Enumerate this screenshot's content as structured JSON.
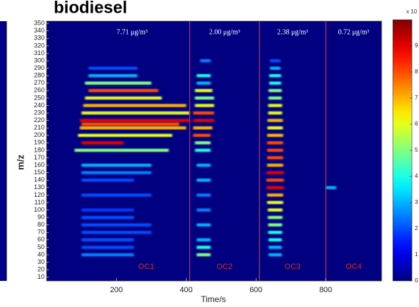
{
  "chart_data": {
    "type": "heatmap",
    "title": "biodiesel",
    "xlabel": "Time/s",
    "ylabel": "m/z",
    "xlim": [
      0,
      960
    ],
    "xticks": [
      200,
      400,
      600,
      800
    ],
    "ylim": [
      5,
      353
    ],
    "yticks": [
      10,
      20,
      30,
      40,
      50,
      60,
      70,
      80,
      90,
      100,
      110,
      120,
      130,
      140,
      150,
      160,
      170,
      180,
      190,
      200,
      210,
      220,
      230,
      240,
      250,
      260,
      270,
      280,
      290,
      300,
      310,
      320,
      330,
      340,
      350
    ],
    "clim": [
      0,
      10
    ],
    "cticks": [
      0,
      1,
      2,
      3,
      4,
      5,
      6,
      7,
      8,
      9
    ],
    "colorbar_label": "x 10",
    "colormap": "jet",
    "divider_color": "#d42a2a",
    "dividers": [
      410,
      610,
      800
    ],
    "annotations": [
      "7.71 μg/m³",
      "2.00 μg/m³",
      "2.38 μg/m³",
      "0.72 μg/m³"
    ],
    "regions": [
      "OC1",
      "OC2",
      "OC3",
      "OC4"
    ],
    "streaks": [
      {
        "time": [
          120,
          260
        ],
        "mz": 290,
        "value": 2
      },
      {
        "time": [
          120,
          260
        ],
        "mz": 280,
        "value": 3
      },
      {
        "time": [
          110,
          300
        ],
        "mz": 270,
        "value": 5
      },
      {
        "time": [
          120,
          320
        ],
        "mz": 260,
        "value": 8
      },
      {
        "time": [
          110,
          330
        ],
        "mz": 250,
        "value": 6
      },
      {
        "time": [
          105,
          400
        ],
        "mz": 240,
        "value": 7
      },
      {
        "time": [
          100,
          410
        ],
        "mz": 230,
        "value": 6
      },
      {
        "time": [
          95,
          410
        ],
        "mz": 220,
        "value": 9
      },
      {
        "time": [
          100,
          380
        ],
        "mz": 215,
        "value": 8
      },
      {
        "time": [
          95,
          400
        ],
        "mz": 210,
        "value": 7
      },
      {
        "time": [
          90,
          360
        ],
        "mz": 200,
        "value": 6
      },
      {
        "time": [
          100,
          220
        ],
        "mz": 190,
        "value": 9
      },
      {
        "time": [
          80,
          350
        ],
        "mz": 180,
        "value": 5
      },
      {
        "time": [
          100,
          300
        ],
        "mz": 160,
        "value": 3
      },
      {
        "time": [
          100,
          300
        ],
        "mz": 150,
        "value": 2.5
      },
      {
        "time": [
          100,
          250
        ],
        "mz": 140,
        "value": 2
      },
      {
        "time": [
          100,
          300
        ],
        "mz": 120,
        "value": 2
      },
      {
        "time": [
          100,
          250
        ],
        "mz": 100,
        "value": 1.8
      },
      {
        "time": [
          100,
          250
        ],
        "mz": 90,
        "value": 2
      },
      {
        "time": [
          100,
          300
        ],
        "mz": 80,
        "value": 2
      },
      {
        "time": [
          100,
          300
        ],
        "mz": 70,
        "value": 2
      },
      {
        "time": [
          100,
          250
        ],
        "mz": 60,
        "value": 2
      },
      {
        "time": [
          100,
          250
        ],
        "mz": 50,
        "value": 2
      },
      {
        "time": [
          100,
          250
        ],
        "mz": 40,
        "value": 2.5
      },
      {
        "time": [
          440,
          470
        ],
        "mz": 300,
        "value": 2.5
      },
      {
        "time": [
          430,
          470
        ],
        "mz": 280,
        "value": 4
      },
      {
        "time": [
          430,
          470
        ],
        "mz": 270,
        "value": 3
      },
      {
        "time": [
          425,
          475
        ],
        "mz": 260,
        "value": 6
      },
      {
        "time": [
          425,
          480
        ],
        "mz": 250,
        "value": 5
      },
      {
        "time": [
          425,
          480
        ],
        "mz": 240,
        "value": 6
      },
      {
        "time": [
          420,
          480
        ],
        "mz": 230,
        "value": 8
      },
      {
        "time": [
          420,
          480
        ],
        "mz": 220,
        "value": 9
      },
      {
        "time": [
          420,
          475
        ],
        "mz": 210,
        "value": 7
      },
      {
        "time": [
          420,
          470
        ],
        "mz": 200,
        "value": 8
      },
      {
        "time": [
          425,
          470
        ],
        "mz": 190,
        "value": 5
      },
      {
        "time": [
          425,
          470
        ],
        "mz": 180,
        "value": 4
      },
      {
        "time": [
          430,
          470
        ],
        "mz": 160,
        "value": 3
      },
      {
        "time": [
          430,
          470
        ],
        "mz": 140,
        "value": 3
      },
      {
        "time": [
          430,
          470
        ],
        "mz": 120,
        "value": 2.5
      },
      {
        "time": [
          430,
          470
        ],
        "mz": 100,
        "value": 2.5
      },
      {
        "time": [
          430,
          470
        ],
        "mz": 80,
        "value": 3
      },
      {
        "time": [
          430,
          470
        ],
        "mz": 60,
        "value": 3
      },
      {
        "time": [
          430,
          470
        ],
        "mz": 50,
        "value": 4
      },
      {
        "time": [
          430,
          470
        ],
        "mz": 40,
        "value": 5
      },
      {
        "time": [
          640,
          670
        ],
        "mz": 300,
        "value": 2
      },
      {
        "time": [
          640,
          670
        ],
        "mz": 290,
        "value": 3
      },
      {
        "time": [
          638,
          672
        ],
        "mz": 280,
        "value": 4
      },
      {
        "time": [
          638,
          672
        ],
        "mz": 270,
        "value": 4
      },
      {
        "time": [
          636,
          674
        ],
        "mz": 260,
        "value": 5
      },
      {
        "time": [
          636,
          674
        ],
        "mz": 250,
        "value": 5
      },
      {
        "time": [
          635,
          675
        ],
        "mz": 240,
        "value": 6
      },
      {
        "time": [
          635,
          675
        ],
        "mz": 230,
        "value": 6
      },
      {
        "time": [
          633,
          677
        ],
        "mz": 220,
        "value": 7
      },
      {
        "time": [
          633,
          677
        ],
        "mz": 210,
        "value": 6
      },
      {
        "time": [
          632,
          678
        ],
        "mz": 200,
        "value": 7
      },
      {
        "time": [
          632,
          678
        ],
        "mz": 190,
        "value": 8
      },
      {
        "time": [
          632,
          678
        ],
        "mz": 180,
        "value": 8
      },
      {
        "time": [
          632,
          678
        ],
        "mz": 170,
        "value": 8
      },
      {
        "time": [
          632,
          678
        ],
        "mz": 160,
        "value": 7
      },
      {
        "time": [
          630,
          680
        ],
        "mz": 150,
        "value": 9
      },
      {
        "time": [
          630,
          680
        ],
        "mz": 140,
        "value": 8
      },
      {
        "time": [
          630,
          680
        ],
        "mz": 130,
        "value": 9
      },
      {
        "time": [
          632,
          678
        ],
        "mz": 120,
        "value": 7
      },
      {
        "time": [
          632,
          678
        ],
        "mz": 110,
        "value": 6
      },
      {
        "time": [
          634,
          676
        ],
        "mz": 100,
        "value": 6
      },
      {
        "time": [
          634,
          676
        ],
        "mz": 90,
        "value": 5
      },
      {
        "time": [
          635,
          675
        ],
        "mz": 80,
        "value": 5
      },
      {
        "time": [
          635,
          675
        ],
        "mz": 70,
        "value": 4
      },
      {
        "time": [
          636,
          674
        ],
        "mz": 60,
        "value": 4
      },
      {
        "time": [
          636,
          674
        ],
        "mz": 50,
        "value": 3
      },
      {
        "time": [
          636,
          674
        ],
        "mz": 40,
        "value": 3
      },
      {
        "time": [
          800,
          830
        ],
        "mz": 130,
        "value": 3
      }
    ]
  }
}
